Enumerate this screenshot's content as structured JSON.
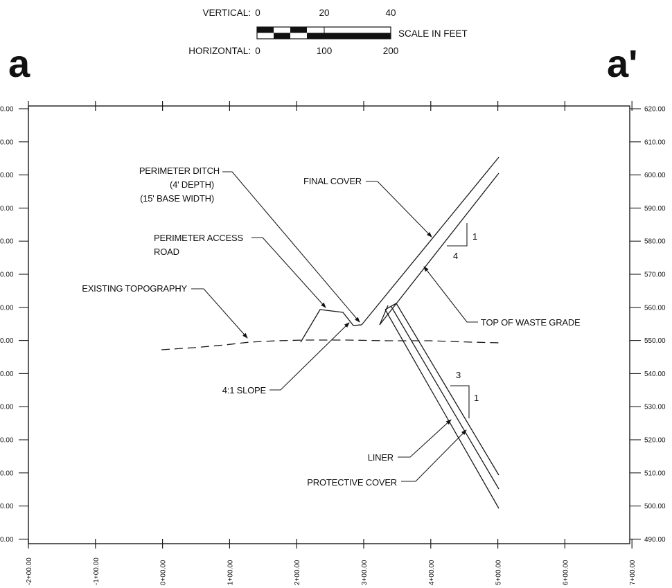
{
  "section": {
    "start_label": "a",
    "end_label": "a'"
  },
  "scale_bar": {
    "vertical_label": "VERTICAL:",
    "vertical_ticks": [
      "0",
      "20",
      "40"
    ],
    "horizontal_label": "HORIZONTAL:",
    "horizontal_ticks": [
      "0",
      "100",
      "200"
    ],
    "units_label": "SCALE IN FEET"
  },
  "axes": {
    "x_tick_labels": [
      "-2+00.00",
      "-1+00.00",
      "0+00.00",
      "1+00.00",
      "2+00.00",
      "3+00.00",
      "4+00.00",
      "5+00.00",
      "6+00.00",
      "7+00.00"
    ],
    "y_right_labels": [
      "620.00",
      "610.00",
      "600.00",
      "590.00",
      "580.00",
      "570.00",
      "560.00",
      "550.00",
      "540.00",
      "530.00",
      "520.00",
      "510.00",
      "500.00",
      "490.00"
    ],
    "y_left_labels": [
      "0.00",
      "0.00",
      "0.00",
      "0.00",
      "0.00",
      "0.00",
      "0.00",
      "0.00",
      "0.00",
      "0.00",
      "0.00",
      "0.00",
      "0.00",
      "0.00"
    ]
  },
  "callouts": {
    "perimeter_ditch": "PERIMETER DITCH",
    "ditch_depth": "(4' DEPTH)",
    "ditch_width": "(15' BASE WIDTH)",
    "access_road_1": "PERIMETER ACCESS",
    "access_road_2": "ROAD",
    "existing_topography": "EXISTING TOPOGRAPHY",
    "slope_41": "4:1 SLOPE",
    "final_cover": "FINAL COVER",
    "top_of_waste": "TOP OF WASTE GRADE",
    "liner": "LINER",
    "protective_cover": "PROTECTIVE COVER"
  },
  "slope_marks": {
    "upper_rise": "1",
    "upper_run": "4",
    "lower_run": "3",
    "lower_rise": "1"
  }
}
